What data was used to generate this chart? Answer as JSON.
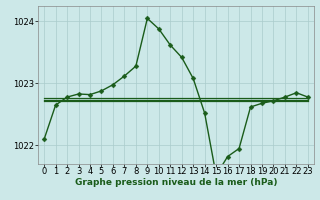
{
  "title": "Graphe pression niveau de la mer (hPa)",
  "background_color": "#cce8e8",
  "plot_bg_color": "#cce8e8",
  "grid_color": "#aacccc",
  "line_color": "#1a5c1a",
  "marker_color": "#1a5c1a",
  "xlim": [
    -0.5,
    23.5
  ],
  "ylim": [
    1021.7,
    1024.25
  ],
  "yticks": [
    1022,
    1023,
    1024
  ],
  "xticks": [
    0,
    1,
    2,
    3,
    4,
    5,
    6,
    7,
    8,
    9,
    10,
    11,
    12,
    13,
    14,
    15,
    16,
    17,
    18,
    19,
    20,
    21,
    22,
    23
  ],
  "series1": [
    1022.1,
    1022.65,
    1022.78,
    1022.83,
    1022.82,
    1022.88,
    1022.98,
    1023.12,
    1023.28,
    1024.05,
    1023.88,
    1023.62,
    1023.42,
    1023.08,
    1022.52,
    1021.52,
    1021.82,
    1021.95,
    1022.62,
    1022.68,
    1022.72,
    1022.78,
    1022.85,
    1022.78
  ],
  "series2_y": 1022.76,
  "series3_y": 1022.74,
  "series4_y": 1022.72,
  "marker_size": 2.5,
  "line_width": 1.0,
  "title_fontsize": 6.5,
  "tick_fontsize": 6.0
}
